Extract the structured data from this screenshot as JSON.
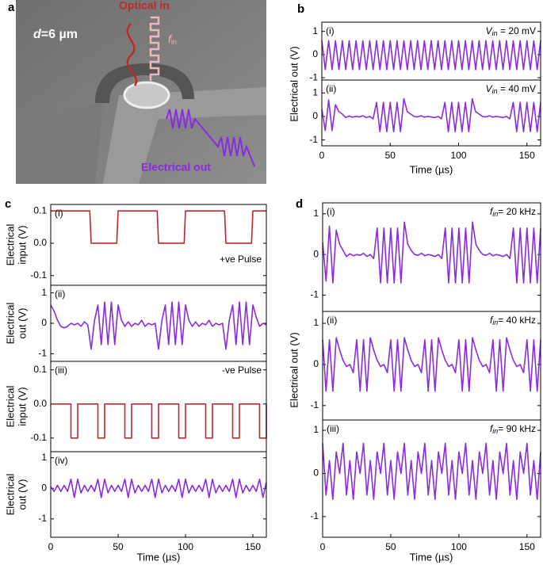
{
  "panel_a": {
    "scale_symbol": "d",
    "scale_text": "=6 µm",
    "optical_in": "Optical in",
    "f": "f",
    "f_sub": "in",
    "electrical_out": "Electrical out"
  },
  "panels": [
    {
      "letter": "a"
    },
    {
      "letter": "b",
      "ylabel": "Electrical out (V)",
      "xlabel": "Time (µs)"
    },
    {
      "letter": "c",
      "xlabel": "Time (µs)"
    },
    {
      "letter": "d",
      "ylabel": "Electrical out (V)",
      "xlabel": "Time (µs)"
    }
  ],
  "chart_data": [
    {
      "type": "line",
      "label": "(i)",
      "annotation": {
        "symbol": "V",
        "subscript": "in",
        "text": " = 20 mV"
      },
      "color": "#8a2be2",
      "xlim": [
        0,
        160
      ],
      "ylim": [
        -1.1,
        1.4
      ],
      "yticks": [
        -1,
        0,
        1
      ],
      "x": [
        0,
        2.5,
        5,
        7.5,
        10,
        12.5,
        15,
        17.5,
        20,
        22.5,
        25,
        27.5,
        30,
        32.5,
        35,
        37.5,
        40,
        42.5,
        45,
        47.5,
        50,
        52.5,
        55,
        57.5,
        60,
        62.5,
        65,
        67.5,
        70,
        72.5,
        75,
        77.5,
        80,
        82.5,
        85,
        87.5,
        90,
        92.5,
        95,
        97.5,
        100,
        102.5,
        105,
        107.5,
        110,
        112.5,
        115,
        117.5,
        120,
        122.5,
        125,
        127.5,
        130,
        132.5,
        135,
        137.5,
        140,
        142.5,
        145,
        147.5,
        150,
        152.5,
        155,
        157.5,
        160
      ],
      "values": [
        0.6,
        -0.65,
        0.6,
        -0.65,
        0.6,
        -0.65,
        0.6,
        -0.65,
        0.6,
        -0.65,
        0.6,
        -0.65,
        0.6,
        -0.65,
        0.6,
        -0.65,
        0.6,
        -0.65,
        0.6,
        -0.65,
        0.6,
        -0.65,
        0.6,
        -0.65,
        0.6,
        -0.65,
        0.6,
        -0.65,
        0.6,
        -0.65,
        0.6,
        -0.65,
        0.6,
        -0.65,
        0.6,
        -0.65,
        0.6,
        -0.65,
        0.6,
        -0.65,
        0.6,
        -0.65,
        0.6,
        -0.65,
        0.6,
        -0.65,
        0.6,
        -0.65,
        0.6,
        -0.65,
        0.6,
        -0.65,
        0.6,
        -0.65,
        0.6,
        -0.65,
        0.6,
        -0.65,
        0.6,
        -0.65,
        0.6,
        -0.65,
        0.6,
        -0.65,
        0.6
      ]
    },
    {
      "type": "line",
      "label": "(ii)",
      "annotation": {
        "symbol": "V",
        "subscript": "in",
        "text": " = 40 mV"
      },
      "color": "#8a2be2",
      "xlim": [
        0,
        160
      ],
      "ylim": [
        -1.25,
        1.55
      ],
      "yticks": [
        -1,
        0,
        1
      ],
      "xticks": [
        0,
        50,
        100,
        150
      ],
      "x": [
        0,
        2.5,
        5,
        7.5,
        10,
        12.5,
        15,
        17.5,
        20,
        22.5,
        25,
        27.5,
        30,
        32.5,
        35,
        37.5,
        40,
        42.5,
        45,
        47.5,
        50,
        52.5,
        55,
        57.5,
        60,
        62.5,
        65,
        67.5,
        70,
        72.5,
        75,
        77.5,
        80,
        82.5,
        85,
        87.5,
        90,
        92.5,
        95,
        97.5,
        100,
        102.5,
        105,
        107.5,
        110,
        112.5,
        115,
        117.5,
        120,
        122.5,
        125,
        127.5,
        130,
        132.5,
        135,
        137.5,
        140,
        142.5,
        145,
        147.5,
        150,
        152.5,
        155,
        157.5,
        160
      ],
      "values": [
        0.3,
        -0.6,
        0.7,
        -0.6,
        0.5,
        0.2,
        0.1,
        -0.05,
        0.02,
        -0.03,
        0.0,
        -0.02,
        0.03,
        -0.05,
        0.0,
        -0.1,
        0.6,
        -0.65,
        0.6,
        -0.65,
        0.6,
        -0.65,
        0.6,
        -0.65,
        0.75,
        0.2,
        0.1,
        0.0,
        -0.02,
        0.03,
        -0.03,
        0.0,
        -0.02,
        -0.05,
        0.0,
        -0.1,
        0.6,
        -0.65,
        0.6,
        -0.65,
        0.6,
        -0.65,
        0.6,
        -0.65,
        0.75,
        0.2,
        0.1,
        0.0,
        -0.02,
        0.03,
        -0.03,
        0.0,
        -0.02,
        -0.05,
        0.0,
        -0.1,
        0.6,
        -0.65,
        0.6,
        -0.65,
        0.6,
        -0.65,
        0.6,
        -0.65,
        0.6
      ]
    },
    {
      "type": "line",
      "label": "(i)",
      "note": "+ve Pulse",
      "ylabel": [
        "Electrical",
        "input (V)"
      ],
      "color": "#c0282b",
      "xlim": [
        0,
        160
      ],
      "ylim": [
        -0.13,
        0.12
      ],
      "yticks": [
        -0.1,
        {
          "value": 0,
          "label": "0.0"
        },
        0.1
      ],
      "x": [
        0,
        29,
        30,
        49,
        50,
        79,
        80,
        99,
        100,
        129,
        130,
        149,
        150,
        160
      ],
      "values": [
        0.1,
        0.1,
        0,
        0,
        0.1,
        0.1,
        0,
        0,
        0.1,
        0.1,
        0,
        0,
        0.1,
        0.1
      ]
    },
    {
      "type": "line",
      "label": "(ii)",
      "ylabel": [
        "Electrical",
        "out (V)"
      ],
      "color": "#8a2be2",
      "xlim": [
        0,
        160
      ],
      "ylim": [
        -1.25,
        1.25
      ],
      "yticks": [
        -1,
        0,
        1
      ],
      "x": [
        0,
        2.5,
        5,
        7.5,
        10,
        12.5,
        15,
        17.5,
        20,
        22.5,
        25,
        27.5,
        30,
        32.5,
        35,
        37.5,
        40,
        42.5,
        45,
        47.5,
        50,
        52.5,
        55,
        57.5,
        60,
        62.5,
        65,
        67.5,
        70,
        72.5,
        75,
        77.5,
        80,
        82.5,
        85,
        87.5,
        90,
        92.5,
        95,
        97.5,
        100,
        102.5,
        105,
        107.5,
        110,
        112.5,
        115,
        117.5,
        120,
        122.5,
        125,
        127.5,
        130,
        132.5,
        135,
        137.5,
        140,
        142.5,
        145,
        147.5,
        150,
        152.5,
        155,
        157.5,
        160
      ],
      "values": [
        0.6,
        0.4,
        0.1,
        -0.1,
        -0.15,
        -0.1,
        0.0,
        -0.05,
        0.0,
        -0.1,
        0.05,
        -0.05,
        -0.85,
        0.1,
        0.6,
        -0.7,
        0.7,
        -0.7,
        0.7,
        -0.7,
        0.6,
        0.1,
        -0.1,
        0.05,
        -0.1,
        0.0,
        -0.05,
        0.1,
        -0.1,
        0.0,
        -0.05,
        0.0,
        -0.85,
        0.1,
        0.6,
        -0.7,
        0.7,
        -0.7,
        0.7,
        -0.7,
        0.6,
        0.1,
        -0.1,
        0.05,
        -0.1,
        0.0,
        -0.05,
        0.1,
        -0.1,
        0.0,
        -0.05,
        0.0,
        -0.85,
        0.1,
        0.6,
        -0.7,
        0.7,
        -0.7,
        0.7,
        -0.7,
        0.6,
        0.2,
        -0.1,
        0.0,
        -0.05
      ]
    },
    {
      "type": "line",
      "label": "(iii)",
      "note": "-ve Pulse",
      "ylabel": [
        "Electrical",
        "input (V)"
      ],
      "color": "#c0282b",
      "xlim": [
        0,
        160
      ],
      "ylim": [
        -0.14,
        0.125
      ],
      "yticks": [
        -0.1,
        {
          "value": 0,
          "label": "0.0"
        },
        0.1
      ],
      "x": [
        0,
        15,
        15,
        20,
        20,
        35,
        35,
        40,
        40,
        55,
        55,
        60,
        60,
        75,
        75,
        80,
        80,
        95,
        95,
        100,
        100,
        115,
        115,
        120,
        120,
        135,
        135,
        140,
        140,
        155,
        155,
        160,
        160
      ],
      "values": [
        0,
        0,
        -0.1,
        -0.1,
        0,
        0,
        -0.1,
        -0.1,
        0,
        0,
        -0.1,
        -0.1,
        0,
        0,
        -0.1,
        -0.1,
        0,
        0,
        -0.1,
        -0.1,
        0,
        0,
        -0.1,
        -0.1,
        0,
        0,
        -0.1,
        -0.1,
        0,
        0,
        -0.1,
        -0.1,
        0
      ]
    },
    {
      "type": "line",
      "label": "(iv)",
      "ylabel": [
        "Electrical",
        "out (V)"
      ],
      "color": "#8a2be2",
      "xlim": [
        0,
        160
      ],
      "ylim": [
        -1.6,
        1.2
      ],
      "yticks": [
        -1,
        0,
        1
      ],
      "xticks": [
        0,
        50,
        100,
        150
      ],
      "x": [
        0,
        2.5,
        5,
        7.5,
        10,
        12.5,
        15,
        17.5,
        20,
        22.5,
        25,
        27.5,
        30,
        32.5,
        35,
        37.5,
        40,
        42.5,
        45,
        47.5,
        50,
        52.5,
        55,
        57.5,
        60,
        62.5,
        65,
        67.5,
        70,
        72.5,
        75,
        77.5,
        80,
        82.5,
        85,
        87.5,
        90,
        92.5,
        95,
        97.5,
        100,
        102.5,
        105,
        107.5,
        110,
        112.5,
        115,
        117.5,
        120,
        122.5,
        125,
        127.5,
        130,
        132.5,
        135,
        137.5,
        140,
        142.5,
        145,
        147.5,
        150,
        152.5,
        155,
        157.5,
        160
      ],
      "values": [
        0.05,
        -0.1,
        0.1,
        -0.1,
        0.1,
        -0.1,
        0.3,
        -0.3,
        0.3,
        -0.15,
        0.1,
        -0.1,
        0.1,
        -0.1,
        0.3,
        -0.3,
        0.3,
        -0.15,
        0.1,
        -0.1,
        0.1,
        -0.1,
        0.3,
        -0.3,
        0.3,
        -0.15,
        0.1,
        -0.1,
        0.1,
        -0.1,
        0.3,
        -0.3,
        0.3,
        -0.15,
        0.1,
        -0.1,
        0.1,
        -0.1,
        0.3,
        -0.3,
        0.3,
        -0.15,
        0.1,
        -0.1,
        0.1,
        -0.1,
        0.3,
        -0.3,
        0.3,
        -0.15,
        0.1,
        -0.1,
        0.1,
        -0.1,
        0.3,
        -0.3,
        0.3,
        -0.15,
        0.1,
        -0.1,
        0.1,
        -0.1,
        0.3,
        -0.3,
        0.2
      ]
    },
    {
      "type": "line",
      "label": "(i)",
      "annotation": {
        "symbol": "f",
        "subscript": "in",
        "text": "= 20 kHz"
      },
      "color": "#8a2be2",
      "xlim": [
        0,
        160
      ],
      "ylim": [
        -1.4,
        1.27
      ],
      "yticks": [
        -1,
        0,
        1
      ],
      "x": [
        0,
        2.5,
        5,
        7.5,
        10,
        12.5,
        15,
        17.5,
        20,
        22.5,
        25,
        27.5,
        30,
        32.5,
        35,
        37.5,
        40,
        42.5,
        45,
        47.5,
        50,
        52.5,
        55,
        57.5,
        60,
        62.5,
        65,
        67.5,
        70,
        72.5,
        75,
        77.5,
        80,
        82.5,
        85,
        87.5,
        90,
        92.5,
        95,
        97.5,
        100,
        102.5,
        105,
        107.5,
        110,
        112.5,
        115,
        117.5,
        120,
        122.5,
        125,
        127.5,
        130,
        132.5,
        135,
        137.5,
        140,
        142.5,
        145,
        147.5,
        150,
        152.5,
        155,
        157.5,
        160
      ],
      "values": [
        0.3,
        -0.65,
        0.7,
        -0.7,
        0.6,
        0.25,
        0.1,
        -0.05,
        0.02,
        -0.03,
        0.0,
        -0.02,
        0.03,
        -0.05,
        0.0,
        -0.1,
        0.65,
        -0.7,
        0.65,
        -0.7,
        0.65,
        -0.7,
        0.65,
        -0.7,
        0.8,
        0.25,
        0.1,
        0.0,
        -0.02,
        0.03,
        -0.03,
        0.0,
        -0.02,
        -0.05,
        0.0,
        -0.1,
        0.65,
        -0.7,
        0.65,
        -0.7,
        0.65,
        -0.7,
        0.65,
        -0.7,
        0.8,
        0.25,
        0.1,
        0.0,
        -0.02,
        0.03,
        -0.03,
        0.0,
        -0.02,
        -0.05,
        0.0,
        -0.1,
        0.65,
        -0.7,
        0.65,
        -0.7,
        0.65,
        -0.7,
        0.65,
        -0.7,
        0.65
      ]
    },
    {
      "type": "line",
      "label": "(ii)",
      "annotation": {
        "symbol": "f",
        "subscript": "in",
        "text": "= 40 kHz"
      },
      "color": "#8a2be2",
      "xlim": [
        0,
        160
      ],
      "ylim": [
        -1.35,
        1.29
      ],
      "yticks": [
        -1,
        0,
        1
      ],
      "x": [
        0,
        2.5,
        5,
        7.5,
        10,
        12.5,
        15,
        17.5,
        20,
        22.5,
        25,
        27.5,
        30,
        32.5,
        35,
        37.5,
        40,
        42.5,
        45,
        47.5,
        50,
        52.5,
        55,
        57.5,
        60,
        62.5,
        65,
        67.5,
        70,
        72.5,
        75,
        77.5,
        80,
        82.5,
        85,
        87.5,
        90,
        92.5,
        95,
        97.5,
        100,
        102.5,
        105,
        107.5,
        110,
        112.5,
        115,
        117.5,
        120,
        122.5,
        125,
        127.5,
        130,
        132.5,
        135,
        137.5,
        140,
        142.5,
        145,
        147.5,
        150,
        152.5,
        155,
        157.5,
        160
      ],
      "values": [
        0.6,
        -0.65,
        0.6,
        -0.65,
        0.65,
        0.35,
        0.1,
        -0.05,
        0.0,
        -0.2,
        0.6,
        -0.65,
        0.6,
        -0.65,
        0.65,
        0.35,
        0.1,
        -0.05,
        0.0,
        -0.2,
        0.6,
        -0.65,
        0.6,
        -0.65,
        0.65,
        0.35,
        0.1,
        -0.05,
        0.0,
        -0.2,
        0.6,
        -0.65,
        0.6,
        -0.65,
        0.65,
        0.35,
        0.1,
        -0.05,
        0.0,
        -0.2,
        0.6,
        -0.65,
        0.6,
        -0.65,
        0.65,
        0.35,
        0.1,
        -0.05,
        0.0,
        -0.2,
        0.6,
        -0.65,
        0.6,
        -0.65,
        0.65,
        0.35,
        0.1,
        -0.05,
        0.0,
        -0.2,
        0.6,
        -0.65,
        0.6,
        -0.65,
        0.6
      ]
    },
    {
      "type": "line",
      "label": "(iii)",
      "annotation": {
        "symbol": "f",
        "subscript": "in",
        "text": "= 90 kHz"
      },
      "color": "#8a2be2",
      "xlim": [
        0,
        160
      ],
      "ylim": [
        -1.48,
        1.24
      ],
      "yticks": [
        -1,
        0,
        1
      ],
      "xticks": [
        0,
        50,
        100,
        150
      ],
      "x": [
        0,
        2.5,
        5,
        7.5,
        10,
        12.5,
        15,
        17.5,
        20,
        22.5,
        25,
        27.5,
        30,
        32.5,
        35,
        37.5,
        40,
        42.5,
        45,
        47.5,
        50,
        52.5,
        55,
        57.5,
        60,
        62.5,
        65,
        67.5,
        70,
        72.5,
        75,
        77.5,
        80,
        82.5,
        85,
        87.5,
        90,
        92.5,
        95,
        97.5,
        100,
        102.5,
        105,
        107.5,
        110,
        112.5,
        115,
        117.5,
        120,
        122.5,
        125,
        127.5,
        130,
        132.5,
        135,
        137.5,
        140,
        142.5,
        145,
        147.5,
        150,
        152.5,
        155,
        157.5,
        160
      ],
      "values": [
        0.7,
        -0.5,
        0.3,
        -0.6,
        0.5,
        0.0,
        0.7,
        -0.5,
        0.3,
        -0.6,
        0.5,
        0.0,
        0.7,
        -0.5,
        0.3,
        -0.6,
        0.5,
        0.0,
        0.7,
        -0.5,
        0.3,
        -0.6,
        0.5,
        0.0,
        0.7,
        -0.5,
        0.3,
        -0.6,
        0.5,
        0.0,
        0.7,
        -0.5,
        0.3,
        -0.6,
        0.5,
        0.0,
        0.7,
        -0.5,
        0.3,
        -0.6,
        0.5,
        0.0,
        0.7,
        -0.5,
        0.3,
        -0.6,
        0.5,
        0.0,
        0.7,
        -0.5,
        0.3,
        -0.6,
        0.5,
        0.0,
        0.7,
        -0.5,
        0.3,
        -0.6,
        0.5,
        0.0,
        0.7,
        -0.5,
        0.3,
        -0.6,
        0.5
      ]
    }
  ]
}
